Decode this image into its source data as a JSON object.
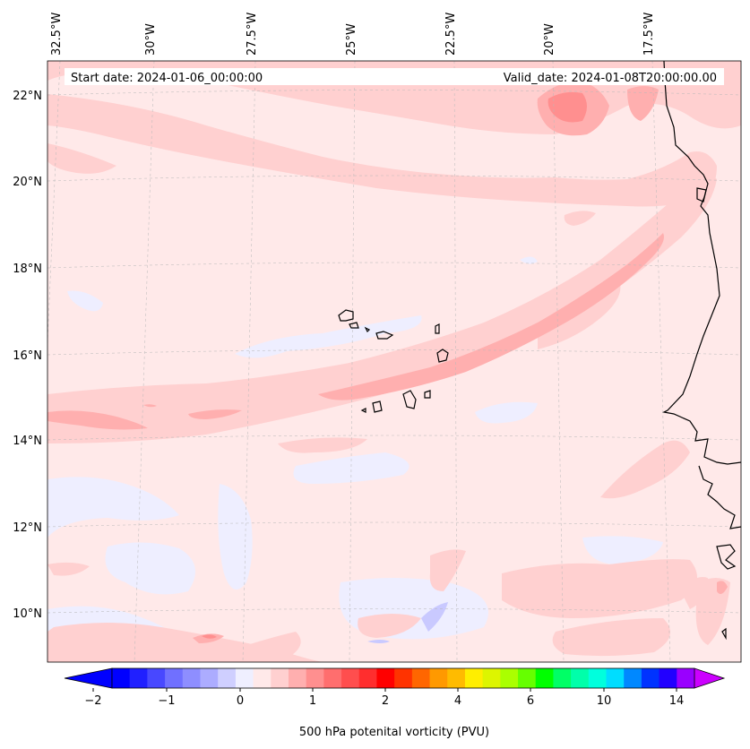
{
  "header": {
    "start_date": "Start date: 2024-01-06_00:00:00",
    "valid_date": "Valid_date: 2024-01-08T20:00:00.00"
  },
  "map": {
    "lon_labels": [
      "32.5°W",
      "30°W",
      "27.5°W",
      "25°W",
      "22.5°W",
      "20°W",
      "17.5°W"
    ],
    "lat_labels": [
      "22°N",
      "20°N",
      "18°N",
      "16°N",
      "14°N",
      "12°N",
      "10°N"
    ],
    "background_color": "#ffe9e9",
    "contour_light": "#ffd0d0",
    "contour_mid": "#ffafaf",
    "contour_strong": "#ff8f8f",
    "negative_color": "#eeeeff",
    "coast_color": "#000000",
    "grid": true
  },
  "colorbar": {
    "label": "500 hPa potenital vorticity (PVU)",
    "tick_labels": [
      "−2",
      "−1",
      "0",
      "1",
      "2",
      "4",
      "6",
      "10",
      "14"
    ],
    "colors": [
      "#0000ff",
      "#2020ff",
      "#4848ff",
      "#7070ff",
      "#8e8eff",
      "#acacff",
      "#cfcfff",
      "#efefff",
      "#ffe9e9",
      "#ffd0d0",
      "#ffafaf",
      "#ff8f8f",
      "#ff6e6e",
      "#ff4e4e",
      "#ff2e2e",
      "#ff0000",
      "#ff3300",
      "#ff6600",
      "#ff9900",
      "#ffbb00",
      "#ffee00",
      "#ddf500",
      "#aaff00",
      "#66ff00",
      "#00ff00",
      "#00ff66",
      "#00ffaa",
      "#00ffdd",
      "#00ddff",
      "#0088ff",
      "#0033ff",
      "#2200ff",
      "#9900ff"
    ],
    "extend_min_color": "#0000ff",
    "extend_max_color": "#cc00ff"
  }
}
